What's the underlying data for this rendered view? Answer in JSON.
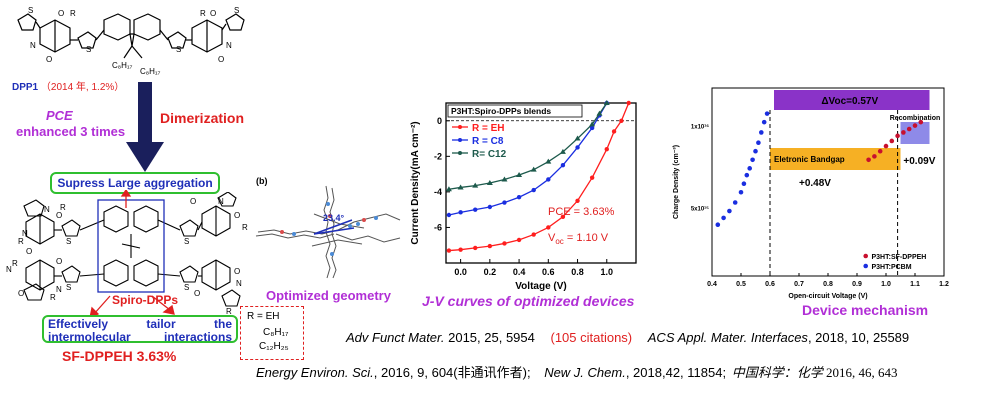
{
  "colors": {
    "accent_red": "#e02020",
    "accent_blue": "#1f2fb8",
    "accent_purple": "#b12fd6",
    "box_green": "#2fbf2f",
    "arrow_navy": "#1a1f5c",
    "band_purple": "#8a33c8",
    "band_orange": "#f6b024",
    "band_lavender": "#8e8ae8"
  },
  "left": {
    "dpp1_label": "DPP1",
    "dpp1_note": "（2014 年, 1.2%）",
    "pce_label": "PCE",
    "pce_note": "enhanced  3 times",
    "dimerization": "Dimerization",
    "box_top": "Supress Large aggregation",
    "spiro_label": "Spiro-DPPs",
    "box_bottom": "Effectively    tailor    the intermolecular interactions",
    "sf_label": "SF-DPPEH  3.63%",
    "top_labels": {
      "c8a": "C₈H₁₇",
      "c8b": "C₈H₁₇",
      "r": "R",
      "o": "O",
      "n": "N"
    }
  },
  "geometry": {
    "panel_tag": "(b)",
    "angle": "23.4°",
    "caption": "Optimized geometry",
    "r_box": [
      "R = EH",
      "C₈H₁₇",
      "C₁₂H₂₅"
    ]
  },
  "jv": {
    "caption": "J-V curves of optimized devices",
    "legend_title": "P3HT:Spiro-DPPs blends",
    "pce": "PCE = 3.63%",
    "voc": "V",
    "voc_sub": "oc",
    "voc_val": " = 1.10 V"
  },
  "chart_data": [
    {
      "type": "line",
      "title": "P3HT:Spiro-DPPs blends",
      "xlabel": "Voltage (V)",
      "ylabel": "Current Density(mA cm⁻²)",
      "xlim": [
        -0.1,
        1.2
      ],
      "ylim": [
        -8,
        1
      ],
      "xticks": [
        "0.0",
        "0.2",
        "0.4",
        "0.6",
        "0.8",
        "1.0"
      ],
      "yticks": [
        "0",
        "-2",
        "-4",
        "-6"
      ],
      "series": [
        {
          "name": "R = EH",
          "color": "#ff1e1e",
          "marker": "circle",
          "points": [
            [
              -0.08,
              -7.3
            ],
            [
              0.0,
              -7.25
            ],
            [
              0.1,
              -7.15
            ],
            [
              0.2,
              -7.05
            ],
            [
              0.3,
              -6.9
            ],
            [
              0.4,
              -6.7
            ],
            [
              0.5,
              -6.4
            ],
            [
              0.6,
              -6.0
            ],
            [
              0.7,
              -5.4
            ],
            [
              0.8,
              -4.5
            ],
            [
              0.9,
              -3.2
            ],
            [
              1.0,
              -1.6
            ],
            [
              1.05,
              -0.6
            ],
            [
              1.1,
              0.0
            ],
            [
              1.15,
              1.2
            ]
          ]
        },
        {
          "name": "R =  C8",
          "color": "#1a2ee0",
          "marker": "circle",
          "points": [
            [
              -0.08,
              -5.3
            ],
            [
              0.0,
              -5.15
            ],
            [
              0.1,
              -5.0
            ],
            [
              0.2,
              -4.85
            ],
            [
              0.3,
              -4.6
            ],
            [
              0.4,
              -4.3
            ],
            [
              0.5,
              -3.9
            ],
            [
              0.6,
              -3.3
            ],
            [
              0.7,
              -2.5
            ],
            [
              0.8,
              -1.5
            ],
            [
              0.9,
              -0.4
            ],
            [
              0.95,
              0.3
            ],
            [
              1.0,
              1.0
            ]
          ]
        },
        {
          "name": "R=  C12",
          "color": "#1d5a4c",
          "marker": "triangle",
          "points": [
            [
              -0.08,
              -3.85
            ],
            [
              0.0,
              -3.75
            ],
            [
              0.1,
              -3.65
            ],
            [
              0.2,
              -3.5
            ],
            [
              0.3,
              -3.3
            ],
            [
              0.4,
              -3.05
            ],
            [
              0.5,
              -2.75
            ],
            [
              0.6,
              -2.3
            ],
            [
              0.7,
              -1.75
            ],
            [
              0.8,
              -1.0
            ],
            [
              0.9,
              -0.2
            ],
            [
              0.95,
              0.4
            ],
            [
              1.0,
              1.0
            ]
          ]
        }
      ]
    },
    {
      "type": "scatter",
      "xlabel": "Open-circuit Voltage (V)",
      "ylabel": "Charge Density (cm⁻³)",
      "xlim": [
        0.4,
        1.2
      ],
      "xticks": [
        "0.4",
        "0.5",
        "0.6",
        "0.7",
        "0.8",
        "0.9",
        "1.0",
        "1.1",
        "1.2"
      ],
      "yticks": [
        "1x10¹⁶",
        "5x10¹⁵"
      ],
      "series": [
        {
          "name": "P3HT:SF-DPPEH",
          "color": "#c8102e",
          "points": [
            [
              0.94,
              6.8
            ],
            [
              0.96,
              7.0
            ],
            [
              0.98,
              7.3
            ],
            [
              1.0,
              7.6
            ],
            [
              1.02,
              7.9
            ],
            [
              1.04,
              8.2
            ],
            [
              1.06,
              8.4
            ],
            [
              1.08,
              8.6
            ],
            [
              1.1,
              8.8
            ],
            [
              1.12,
              9.0
            ]
          ]
        },
        {
          "name": "P3HT:PCBM",
          "color": "#1a2ee0",
          "points": [
            [
              0.42,
              3.0
            ],
            [
              0.44,
              3.4
            ],
            [
              0.46,
              3.8
            ],
            [
              0.48,
              4.3
            ],
            [
              0.5,
              4.9
            ],
            [
              0.51,
              5.4
            ],
            [
              0.52,
              5.9
            ],
            [
              0.53,
              6.3
            ],
            [
              0.54,
              6.8
            ],
            [
              0.55,
              7.3
            ],
            [
              0.56,
              7.8
            ],
            [
              0.57,
              8.4
            ],
            [
              0.58,
              9.0
            ],
            [
              0.59,
              9.5
            ]
          ]
        }
      ]
    }
  ],
  "mechanism": {
    "caption": "Device mechanism",
    "dvoc": "ΔVoc=0.57V",
    "recomb": "Recombination",
    "bandgap": "Eletronic Bandgap",
    "plus048": "+0.48V",
    "plus009": "+0.09V"
  },
  "refs": {
    "r1_journal": "Adv Funct Mater.",
    "r1_rest": " 2015, 25, 5954",
    "r1_cit": "(105 citations)",
    "r2_journal": "ACS Appl. Mater. Interfaces",
    "r2_rest": ", 2018, 10, 25589",
    "r3_journal": "Energy Environ. Sci.",
    "r3_rest": ", 2016, 9, 604(非通讯作者);",
    "r4_journal": "New J. Chem.",
    "r4_rest": ", 2018,42, 11854;",
    "r5_journal": "中国科学：化学",
    "r5_rest": " 2016, 46, 643"
  }
}
